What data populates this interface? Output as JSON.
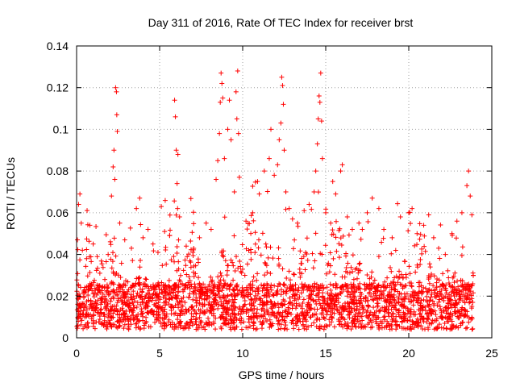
{
  "chart_data": {
    "type": "scatter",
    "title": "Day 311 of 2016, Rate Of TEC Index for receiver brst",
    "xlabel": "GPS time / hours",
    "ylabel": "ROTI / TECUs",
    "xlim": [
      0,
      25
    ],
    "ylim": [
      0,
      0.14
    ],
    "xticks": [
      0,
      5,
      10,
      15,
      20,
      25
    ],
    "yticks": [
      0,
      0.02,
      0.04,
      0.06,
      0.08,
      0.1,
      0.12,
      0.14
    ],
    "xtick_labels": [
      "0",
      "5",
      "10",
      "15",
      "20",
      "25"
    ],
    "ytick_labels": [
      "0",
      "0.02",
      "0.04",
      "0.06",
      "0.08",
      "0.1",
      "0.12",
      "0.14"
    ],
    "grid": true,
    "marker": "+",
    "marker_color": "#ff0000",
    "data_span_hours": [
      0.0,
      23.9
    ],
    "series": [
      {
        "points": [
          [
            0.05,
            0.047
          ],
          [
            0.12,
            0.064
          ],
          [
            0.2,
            0.069
          ],
          [
            0.28,
            0.055
          ],
          [
            0.35,
            0.042
          ],
          [
            0.6,
            0.038
          ],
          [
            0.8,
            0.054
          ],
          [
            1.0,
            0.045
          ],
          [
            1.4,
            0.031
          ],
          [
            1.7,
            0.028
          ],
          [
            1.9,
            0.04
          ],
          [
            2.1,
            0.068
          ],
          [
            2.2,
            0.082
          ],
          [
            2.25,
            0.09
          ],
          [
            2.3,
            0.076
          ],
          [
            2.35,
            0.12
          ],
          [
            2.4,
            0.118
          ],
          [
            2.42,
            0.107
          ],
          [
            2.45,
            0.099
          ],
          [
            2.6,
            0.055
          ],
          [
            2.9,
            0.047
          ],
          [
            3.3,
            0.043
          ],
          [
            3.6,
            0.062
          ],
          [
            3.8,
            0.067
          ],
          [
            4.0,
            0.048
          ],
          [
            4.3,
            0.052
          ],
          [
            4.6,
            0.045
          ],
          [
            4.9,
            0.041
          ],
          [
            5.1,
            0.063
          ],
          [
            5.3,
            0.051
          ],
          [
            5.6,
            0.049
          ],
          [
            5.9,
            0.114
          ],
          [
            5.95,
            0.106
          ],
          [
            6.0,
            0.09
          ],
          [
            6.05,
            0.074
          ],
          [
            6.1,
            0.088
          ],
          [
            6.2,
            0.058
          ],
          [
            6.6,
            0.044
          ],
          [
            7.0,
            0.041
          ],
          [
            7.4,
            0.048
          ],
          [
            7.8,
            0.055
          ],
          [
            8.1,
            0.052
          ],
          [
            8.4,
            0.076
          ],
          [
            8.5,
            0.085
          ],
          [
            8.6,
            0.098
          ],
          [
            8.65,
            0.113
          ],
          [
            8.7,
            0.127
          ],
          [
            8.75,
            0.122
          ],
          [
            8.8,
            0.115
          ],
          [
            8.9,
            0.086
          ],
          [
            9.1,
            0.1
          ],
          [
            9.2,
            0.114
          ],
          [
            9.3,
            0.095
          ],
          [
            9.5,
            0.07
          ],
          [
            9.6,
            0.118
          ],
          [
            9.65,
            0.105
          ],
          [
            9.7,
            0.128
          ],
          [
            9.75,
            0.098
          ],
          [
            9.8,
            0.077
          ],
          [
            10.2,
            0.056
          ],
          [
            10.6,
            0.06
          ],
          [
            11.0,
            0.069
          ],
          [
            11.3,
            0.08
          ],
          [
            11.6,
            0.086
          ],
          [
            11.7,
            0.1
          ],
          [
            11.9,
            0.078
          ],
          [
            12.1,
            0.083
          ],
          [
            12.2,
            0.095
          ],
          [
            12.3,
            0.103
          ],
          [
            12.35,
            0.125
          ],
          [
            12.4,
            0.121
          ],
          [
            12.45,
            0.112
          ],
          [
            12.5,
            0.09
          ],
          [
            12.6,
            0.07
          ],
          [
            12.8,
            0.062
          ],
          [
            13.0,
            0.057
          ],
          [
            13.3,
            0.055
          ],
          [
            13.7,
            0.061
          ],
          [
            14.0,
            0.064
          ],
          [
            14.3,
            0.07
          ],
          [
            14.4,
            0.08
          ],
          [
            14.5,
            0.093
          ],
          [
            14.55,
            0.105
          ],
          [
            14.6,
            0.116
          ],
          [
            14.65,
            0.113
          ],
          [
            14.7,
            0.127
          ],
          [
            14.75,
            0.104
          ],
          [
            14.8,
            0.086
          ],
          [
            15.0,
            0.06
          ],
          [
            15.3,
            0.055
          ],
          [
            15.6,
            0.069
          ],
          [
            15.9,
            0.08
          ],
          [
            16.0,
            0.083
          ],
          [
            16.3,
            0.058
          ],
          [
            16.6,
            0.052
          ],
          [
            17.0,
            0.055
          ],
          [
            17.5,
            0.06
          ],
          [
            17.8,
            0.067
          ],
          [
            18.2,
            0.062
          ],
          [
            18.5,
            0.052
          ],
          [
            19.0,
            0.048
          ],
          [
            19.5,
            0.058
          ],
          [
            20.0,
            0.06
          ],
          [
            20.2,
            0.062
          ],
          [
            20.5,
            0.05
          ],
          [
            20.9,
            0.054
          ],
          [
            21.2,
            0.059
          ],
          [
            21.5,
            0.048
          ],
          [
            21.8,
            0.043
          ],
          [
            22.2,
            0.04
          ],
          [
            22.6,
            0.05
          ],
          [
            22.9,
            0.056
          ],
          [
            23.2,
            0.06
          ],
          [
            23.5,
            0.073
          ],
          [
            23.6,
            0.08
          ],
          [
            23.7,
            0.068
          ],
          [
            23.8,
            0.059
          ]
        ]
      }
    ]
  }
}
